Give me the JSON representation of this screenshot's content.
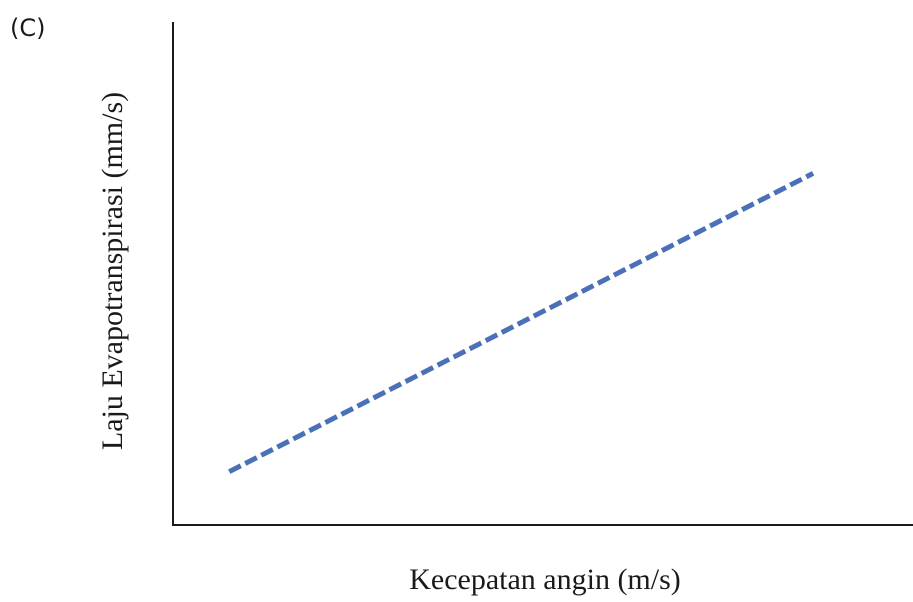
{
  "panel_label": "(C)",
  "colors": {
    "series": "#4a70b8",
    "axis": "#1a1a1a"
  },
  "chart_data": {
    "type": "line",
    "title": "",
    "xlabel": "Kecepatan angin (m/s)",
    "ylabel": "Laju Evapotranspirasi (mm/s)",
    "x_ticks_shown": false,
    "y_ticks_shown": false,
    "grid": false,
    "legend": "none",
    "xlim": [
      0,
      1
    ],
    "ylim": [
      0,
      1
    ],
    "series": [
      {
        "line_style": "dashed",
        "x": [
          0.076,
          0.865
        ],
        "y": [
          0.106,
          0.699
        ]
      }
    ]
  }
}
